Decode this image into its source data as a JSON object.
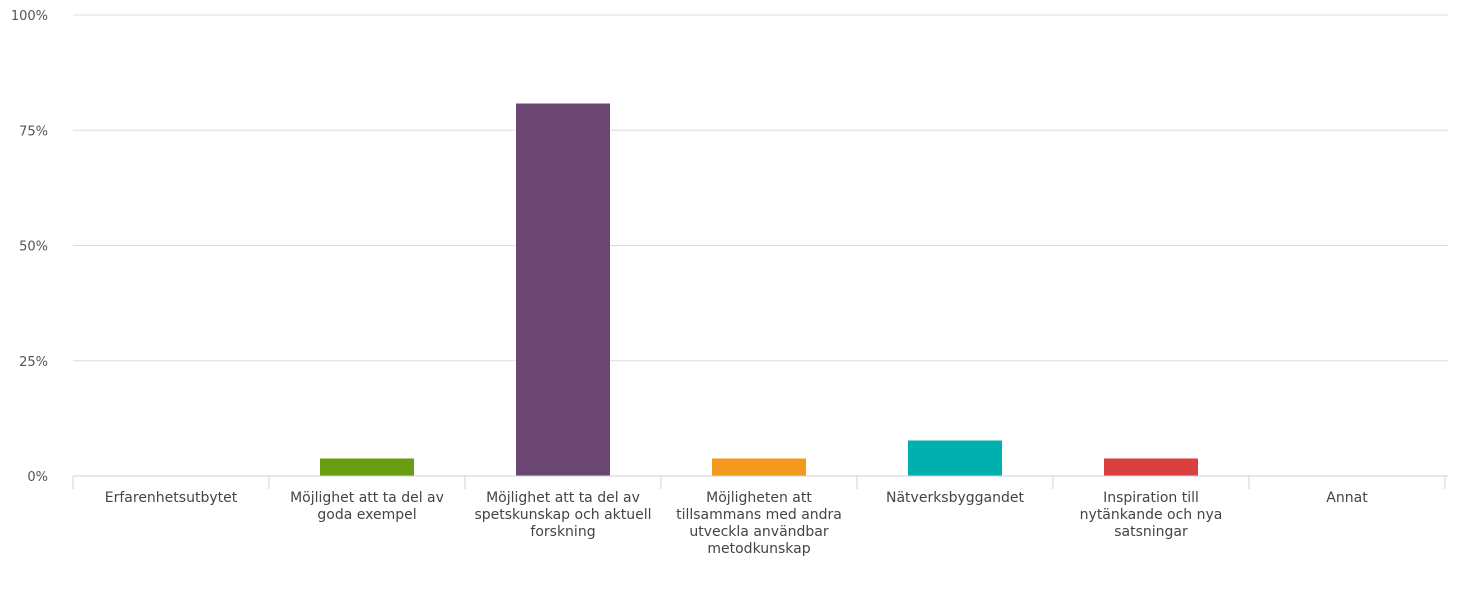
{
  "chart_data": {
    "type": "bar",
    "categories": [
      "Erfarenhetsutbytet",
      "Möjlighet att ta del av goda exempel",
      "Möjlighet att ta del av spetskunskap och aktuell forskning",
      "Möjligheten att tillsammans med andra utveckla användbar metodkunskap",
      "Nätverksbyggandet",
      "Inspiration till nytänkande och nya satsningar",
      "Annat"
    ],
    "values": [
      0,
      3.8,
      80.8,
      3.8,
      7.7,
      3.8,
      0
    ],
    "colors": [
      "#6d9eeb",
      "#6a9e12",
      "#6b4673",
      "#f39a1e",
      "#00b0ae",
      "#d9403f",
      "#999999"
    ],
    "yticks": [
      "0%",
      "25%",
      "50%",
      "75%",
      "100%"
    ],
    "ylim": [
      0,
      100
    ],
    "grid": true
  }
}
